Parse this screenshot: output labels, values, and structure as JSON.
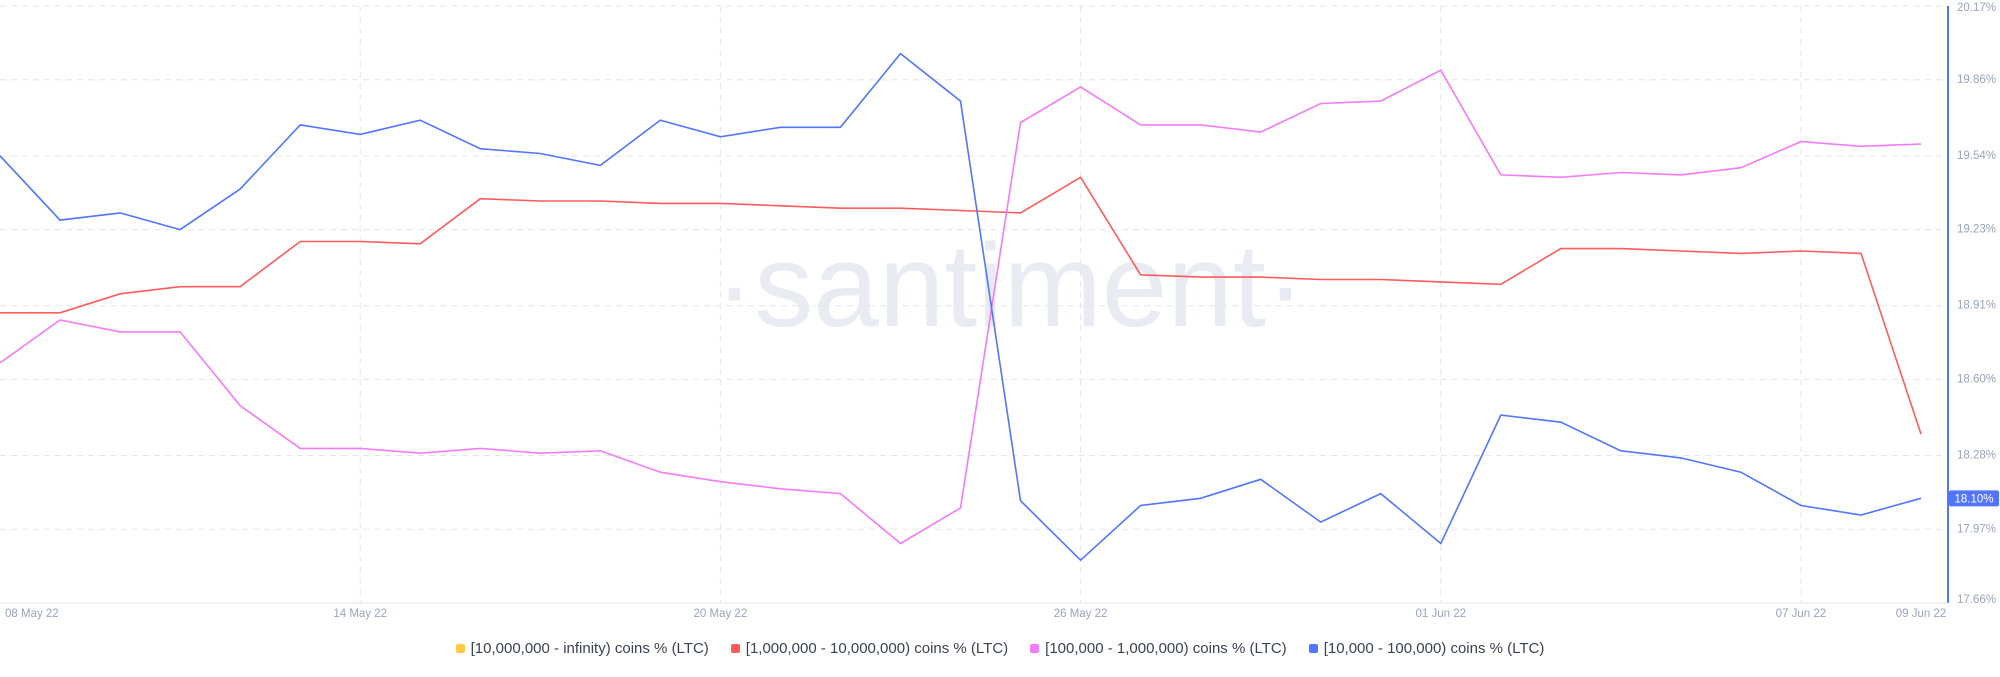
{
  "chart_data": {
    "type": "line",
    "watermark": "·santiment·",
    "categories": [
      "08 May 22",
      null,
      null,
      null,
      null,
      null,
      "14 May 22",
      null,
      null,
      null,
      null,
      null,
      "20 May 22",
      null,
      null,
      null,
      null,
      null,
      "26 May 22",
      null,
      null,
      null,
      null,
      null,
      "01 Jun 22",
      null,
      null,
      null,
      null,
      null,
      "07 Jun 22",
      null,
      "09 Jun 22"
    ],
    "ylim": [
      17.66,
      20.17
    ],
    "yticks": [
      {
        "value": 17.66,
        "label": "17.66%"
      },
      {
        "value": 17.97,
        "label": "17.97%"
      },
      {
        "value": 18.28,
        "label": "18.28%"
      },
      {
        "value": 18.6,
        "label": "18.60%"
      },
      {
        "value": 18.91,
        "label": "18.91%"
      },
      {
        "value": 19.23,
        "label": "19.23%"
      },
      {
        "value": 19.54,
        "label": "19.54%"
      },
      {
        "value": 19.86,
        "label": "19.86%"
      },
      {
        "value": 20.17,
        "label": "20.17%"
      }
    ],
    "grid": true,
    "series": [
      {
        "name": "[10,000,000 - infinity) coins % (LTC)",
        "color": "#ffcb47",
        "values": [
          null,
          null,
          null,
          null,
          null,
          null,
          null,
          null,
          null,
          null,
          null,
          null,
          null,
          null,
          null,
          null,
          null,
          null,
          null,
          null,
          null,
          null,
          null,
          null,
          null,
          null,
          null,
          null,
          null,
          null,
          null,
          null,
          null
        ]
      },
      {
        "name": "[1,000,000 - 10,000,000) coins % (LTC)",
        "color": "#ff5b5b",
        "values": [
          18.88,
          18.88,
          18.96,
          18.99,
          18.99,
          19.18,
          19.18,
          19.17,
          19.36,
          19.35,
          19.35,
          19.34,
          19.34,
          19.33,
          19.32,
          19.32,
          19.31,
          19.3,
          19.45,
          19.04,
          19.03,
          19.03,
          19.02,
          19.02,
          19.01,
          19.0,
          19.15,
          19.15,
          19.14,
          19.13,
          19.14,
          19.13,
          18.37
        ]
      },
      {
        "name": "[100,000  - 1,000,000) coins % (LTC)",
        "color": "#f47bf7",
        "values": [
          18.67,
          18.85,
          18.8,
          18.8,
          18.49,
          18.31,
          18.31,
          18.29,
          18.31,
          18.29,
          18.3,
          18.21,
          18.17,
          18.14,
          18.12,
          17.91,
          18.06,
          19.68,
          19.83,
          19.67,
          19.67,
          19.64,
          19.76,
          19.77,
          19.9,
          19.46,
          19.45,
          19.47,
          19.46,
          19.49,
          19.6,
          19.58,
          19.59
        ]
      },
      {
        "name": "[10,000 - 100,000) coins % (LTC)",
        "color": "#5275ff",
        "values": [
          19.54,
          19.27,
          19.3,
          19.23,
          19.4,
          19.67,
          19.63,
          19.69,
          19.57,
          19.55,
          19.5,
          19.69,
          19.62,
          19.66,
          19.66,
          19.97,
          19.77,
          18.09,
          17.84,
          18.07,
          18.1,
          18.18,
          18.0,
          18.12,
          17.91,
          18.45,
          18.42,
          18.3,
          18.27,
          18.21,
          18.07,
          18.03,
          18.1
        ],
        "value_labels": [
          null,
          null,
          null,
          null,
          null,
          null,
          null,
          null,
          null,
          null,
          null,
          null,
          null,
          null,
          null,
          null,
          null,
          null,
          null,
          null,
          null,
          null,
          null,
          null,
          null,
          null,
          null,
          null,
          null,
          null,
          null,
          null,
          "18.10%"
        ]
      }
    ]
  }
}
